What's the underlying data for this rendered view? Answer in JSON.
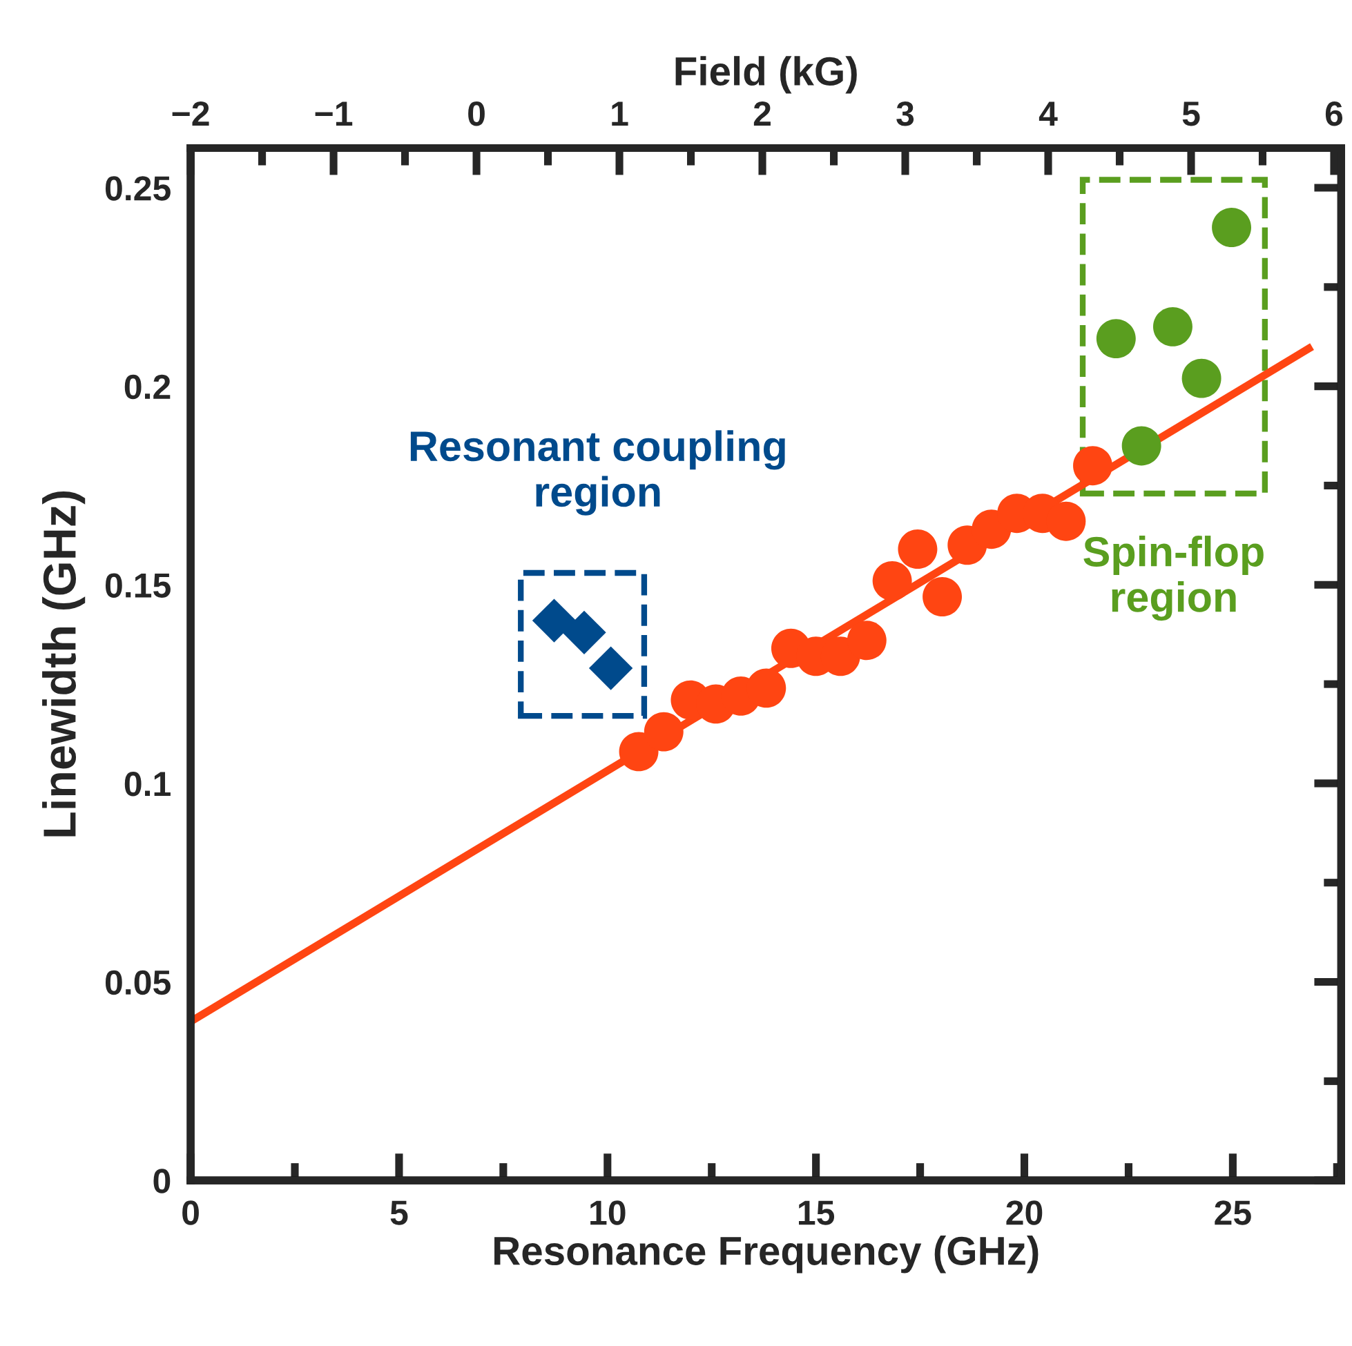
{
  "chart_data": {
    "type": "scatter",
    "xlabel": "Resonance Frequency (GHz)",
    "ylabel": "Linewidth (GHz)",
    "x2label": "Field (kG)",
    "xlim": [
      0,
      27.6
    ],
    "xticks": [
      0,
      5,
      10,
      15,
      20,
      25
    ],
    "x2lim": [
      -2,
      6.05
    ],
    "x2ticks": [
      {
        "value": -2,
        "label": "−2"
      },
      {
        "value": -1,
        "label": "−1"
      },
      0,
      1,
      2,
      3,
      4,
      5,
      6
    ],
    "ylim": [
      0,
      0.26
    ],
    "yticks": [
      0,
      0.05,
      0.1,
      0.15,
      0.2,
      0.25
    ],
    "grid": false,
    "legend": false,
    "series": [
      {
        "type": "line",
        "color": "#ff4512",
        "x": [
          0,
          26.9
        ],
        "values": [
          0.04,
          0.21
        ],
        "marker": "none",
        "line_style": "solid"
      },
      {
        "color": "#ff4512",
        "marker": "circle",
        "x": [
          10.75,
          11.35,
          11.99,
          12.6,
          13.2,
          13.81,
          14.4,
          15.0,
          15.59,
          16.22,
          16.83,
          17.44,
          18.03,
          18.63,
          19.21,
          19.82,
          20.43,
          21.0,
          21.64
        ],
        "values": [
          0.108,
          0.113,
          0.121,
          0.12,
          0.122,
          0.124,
          0.134,
          0.132,
          0.132,
          0.136,
          0.151,
          0.159,
          0.147,
          0.16,
          0.164,
          0.168,
          0.168,
          0.166,
          0.18
        ]
      },
      {
        "color": "#004a8c",
        "marker": "diamond",
        "line_style": "dashed",
        "x": [
          8.72,
          9.44,
          10.08
        ],
        "values": [
          0.141,
          0.138,
          0.129
        ]
      },
      {
        "color": "#5a9e1f",
        "marker": "circle",
        "line_style": "dashed",
        "x": [
          24.97,
          22.2,
          23.56,
          24.25,
          22.81
        ],
        "values": [
          0.24,
          0.212,
          0.215,
          0.202,
          0.185
        ]
      }
    ],
    "annotations": [
      "Resonant coupling\nregion",
      "Spin-flop\nregion"
    ]
  }
}
